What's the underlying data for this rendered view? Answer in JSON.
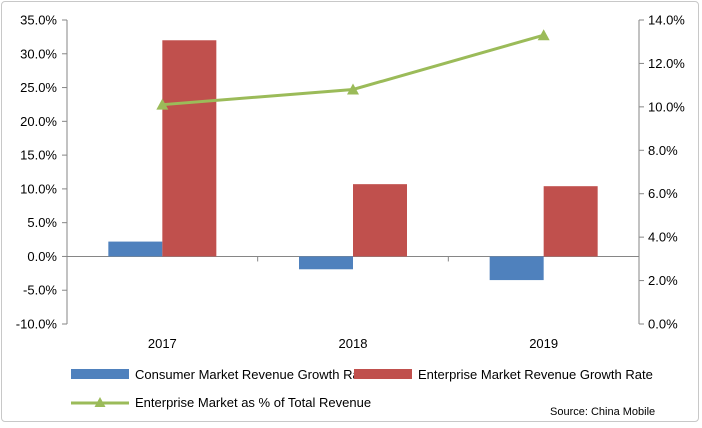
{
  "chart_data": {
    "type": "bar",
    "categories": [
      "2017",
      "2018",
      "2019"
    ],
    "series": [
      {
        "name": "Consumer Market Revenue Growth Rate",
        "axis": "left",
        "kind": "bar",
        "color": "#4f81bd",
        "values": [
          2.2,
          -1.9,
          -3.5
        ]
      },
      {
        "name": "Enterprise Market Revenue Growth Rate",
        "axis": "left",
        "kind": "bar",
        "color": "#c0504d",
        "values": [
          32.0,
          10.7,
          10.4
        ]
      },
      {
        "name": "Enterprise Market as % of Total Revenue",
        "axis": "right",
        "kind": "line",
        "marker": "triangle",
        "color": "#9bbb59",
        "values": [
          10.1,
          10.8,
          13.3
        ]
      }
    ],
    "ylim_left": [
      -10,
      35
    ],
    "ylim_right": [
      0,
      14
    ],
    "yticks_left": [
      "35.0%",
      "30.0%",
      "25.0%",
      "20.0%",
      "15.0%",
      "10.0%",
      "5.0%",
      "0.0%",
      "-5.0%",
      "-10.0%"
    ],
    "yticks_right": [
      "14.0%",
      "12.0%",
      "10.0%",
      "8.0%",
      "6.0%",
      "4.0%",
      "2.0%",
      "0.0%"
    ],
    "grid": false,
    "legend_position": "bottom",
    "source": "Source: China Mobile"
  }
}
